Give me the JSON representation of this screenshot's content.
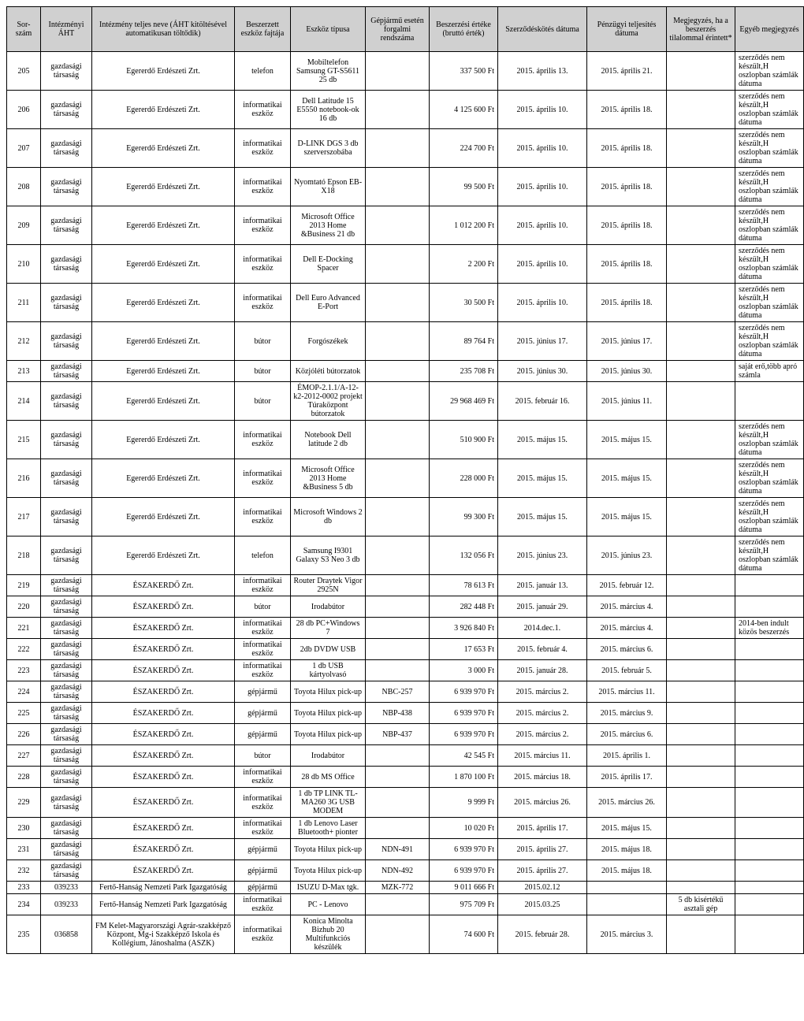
{
  "table": {
    "header_bg": "#d0d0d0",
    "columns": [
      {
        "key": "c0",
        "label": "Sor-szám",
        "width": 36,
        "align": "center"
      },
      {
        "key": "c1",
        "label": "Intézményi ÁHT",
        "width": 58,
        "align": "center"
      },
      {
        "key": "c2",
        "label": "Intézmény teljes neve (ÁHT kitöltésével automatikusan töltődik)",
        "width": 174,
        "align": "center"
      },
      {
        "key": "c3",
        "label": "Beszerzett eszköz fajtája",
        "width": 64,
        "align": "center"
      },
      {
        "key": "c4",
        "label": "Eszköz típusa",
        "width": 88,
        "align": "center"
      },
      {
        "key": "c5",
        "label": "Gépjármű esetén forgalmi rendszáma",
        "width": 74,
        "align": "center"
      },
      {
        "key": "c6",
        "label": "Beszerzési értéke (bruttó érték)",
        "width": 80,
        "align": "right"
      },
      {
        "key": "c7",
        "label": "Szerződéskötés dátuma",
        "width": 106,
        "align": "center"
      },
      {
        "key": "c8",
        "label": "Pénzügyi teljesítés dátuma",
        "width": 94,
        "align": "center"
      },
      {
        "key": "c9",
        "label": "Megjegyzés, ha a beszerzés tilalommal érintett*",
        "width": 80,
        "align": "center"
      },
      {
        "key": "c10",
        "label": "Egyéb megjegyzés",
        "width": 80,
        "align": "left"
      }
    ],
    "rows": [
      [
        "205",
        "gazdasági társaság",
        "Egererdő Erdészeti Zrt.",
        "telefon",
        "Mobiltelefon Samsung GT-S5611 25 db",
        "",
        "337 500 Ft",
        "2015. április 13.",
        "2015. április 21.",
        "",
        "szerződés nem készült,H oszlopban számlák dátuma"
      ],
      [
        "206",
        "gazdasági társaság",
        "Egererdő Erdészeti Zrt.",
        "informatikai eszköz",
        "Dell Latitude 15 E5550 notebook-ok    16 db",
        "",
        "4 125 600 Ft",
        "2015. április 10.",
        "2015. április 18.",
        "",
        "szerződés nem készült,H oszlopban számlák dátuma"
      ],
      [
        "207",
        "gazdasági társaság",
        "Egererdő Erdészeti Zrt.",
        "informatikai eszköz",
        "D-LINK DGS 3 db szerverszobába",
        "",
        "224 700 Ft",
        "2015. április 10.",
        "2015. április 18.",
        "",
        "szerződés nem készült,H oszlopban számlák dátuma"
      ],
      [
        "208",
        "gazdasági társaság",
        "Egererdő Erdészeti Zrt.",
        "informatikai eszköz",
        "Nyomtató Epson EB-X18",
        "",
        "99 500 Ft",
        "2015. április 10.",
        "2015. április 18.",
        "",
        "szerződés nem készült,H oszlopban számlák dátuma"
      ],
      [
        "209",
        "gazdasági társaság",
        "Egererdő Erdészeti Zrt.",
        "informatikai eszköz",
        "Microsoft Office 2013 Home &Business 21 db",
        "",
        "1 012 200 Ft",
        "2015. április 10.",
        "2015. április 18.",
        "",
        "szerződés nem készült,H oszlopban számlák dátuma"
      ],
      [
        "210",
        "gazdasági társaság",
        "Egererdő Erdészeti Zrt.",
        "informatikai eszköz",
        "Dell E-Docking Spacer",
        "",
        "2 200 Ft",
        "2015. április 10.",
        "2015. április 18.",
        "",
        "szerződés nem készült,H oszlopban számlák dátuma"
      ],
      [
        "211",
        "gazdasági társaság",
        "Egererdő Erdészeti Zrt.",
        "informatikai eszköz",
        "Dell Euro Advanced E-Port",
        "",
        "30 500 Ft",
        "2015. április 10.",
        "2015. április 18.",
        "",
        "szerződés nem készült,H oszlopban számlák dátuma"
      ],
      [
        "212",
        "gazdasági társaság",
        "Egererdő Erdészeti Zrt.",
        "bútor",
        "Forgószékek",
        "",
        "89 764 Ft",
        "2015. június 17.",
        "2015. június 17.",
        "",
        "szerződés nem készült,H oszlopban számlák dátuma"
      ],
      [
        "213",
        "gazdasági társaság",
        "Egererdő Erdészeti Zrt.",
        "bútor",
        "Közjóléti bútorzatok",
        "",
        "235 708 Ft",
        "2015. június 30.",
        "2015. június 30.",
        "",
        "saját erő,több apró számla"
      ],
      [
        "214",
        "gazdasági társaság",
        "Egererdő Erdészeti Zrt.",
        "bútor",
        "ÉMOP-2.1.1/A-12-k2-2012-0002 projekt Túraközpont bútorzatok",
        "",
        "29 968 469 Ft",
        "2015. február 16.",
        "2015. június 11.",
        "",
        ""
      ],
      [
        "215",
        "gazdasági társaság",
        "Egererdő Erdészeti Zrt.",
        "informatikai eszköz",
        "Notebook Dell latitude 2 db",
        "",
        "510 900 Ft",
        "2015. május 15.",
        "2015. május 15.",
        "",
        "szerződés nem készült,H oszlopban számlák dátuma"
      ],
      [
        "216",
        "gazdasági társaság",
        "Egererdő Erdészeti Zrt.",
        "informatikai eszköz",
        "Microsoft Office 2013 Home &Business 5 db",
        "",
        "228 000 Ft",
        "2015. május 15.",
        "2015. május 15.",
        "",
        "szerződés nem készült,H oszlopban számlák dátuma"
      ],
      [
        "217",
        "gazdasági társaság",
        "Egererdő Erdészeti Zrt.",
        "informatikai eszköz",
        "Microsoft Windows 2 db",
        "",
        "99 300 Ft",
        "2015. május 15.",
        "2015. május 15.",
        "",
        "szerződés nem készült,H oszlopban számlák dátuma"
      ],
      [
        "218",
        "gazdasági társaság",
        "Egererdő Erdészeti Zrt.",
        "telefon",
        "Samsung I9301 Galaxy S3 Neo 3 db",
        "",
        "132 056 Ft",
        "2015. június 23.",
        "2015. június 23.",
        "",
        "szerződés nem készült,H oszlopban számlák dátuma"
      ],
      [
        "219",
        "gazdasági társaság",
        "ÉSZAKERDŐ Zrt.",
        "informatikai eszköz",
        "Router Draytek Vigor 2925N",
        "",
        "78 613 Ft",
        "2015. január 13.",
        "2015. február 12.",
        "",
        ""
      ],
      [
        "220",
        "gazdasági társaság",
        "ÉSZAKERDŐ Zrt.",
        "bútor",
        "Irodabútor",
        "",
        "282 448 Ft",
        "2015. január 29.",
        "2015. március 4.",
        "",
        ""
      ],
      [
        "221",
        "gazdasági társaság",
        "ÉSZAKERDŐ Zrt.",
        "informatikai eszköz",
        "28 db PC+Windows 7",
        "",
        "3 926 840 Ft",
        "2014.dec.1.",
        "2015. március 4.",
        "",
        "2014-ben indult közös beszerzés"
      ],
      [
        "222",
        "gazdasági társaság",
        "ÉSZAKERDŐ Zrt.",
        "informatikai eszköz",
        "2db DVDW USB",
        "",
        "17 653 Ft",
        "2015. február 4.",
        "2015. március 6.",
        "",
        ""
      ],
      [
        "223",
        "gazdasági társaság",
        "ÉSZAKERDŐ Zrt.",
        "informatikai eszköz",
        "1 db USB kártyolvasó",
        "",
        "3 000 Ft",
        "2015. január 28.",
        "2015. február 5.",
        "",
        ""
      ],
      [
        "224",
        "gazdasági társaság",
        "ÉSZAKERDŐ Zrt.",
        "gépjármű",
        "Toyota Hilux pick-up",
        "NBC-257",
        "6 939 970 Ft",
        "2015. március 2.",
        "2015. március 11.",
        "",
        ""
      ],
      [
        "225",
        "gazdasági társaság",
        "ÉSZAKERDŐ Zrt.",
        "gépjármű",
        "Toyota Hilux pick-up",
        "NBP-438",
        "6 939 970 Ft",
        "2015. március 2.",
        "2015. március 9.",
        "",
        ""
      ],
      [
        "226",
        "gazdasági társaság",
        "ÉSZAKERDŐ Zrt.",
        "gépjármű",
        "Toyota Hilux pick-up",
        "NBP-437",
        "6 939 970 Ft",
        "2015. március 2.",
        "2015. március 6.",
        "",
        ""
      ],
      [
        "227",
        "gazdasági társaság",
        "ÉSZAKERDŐ Zrt.",
        "bútor",
        "Irodabútor",
        "",
        "42 545 Ft",
        "2015. március 11.",
        "2015. április 1.",
        "",
        ""
      ],
      [
        "228",
        "gazdasági társaság",
        "ÉSZAKERDŐ Zrt.",
        "informatikai eszköz",
        "28 db MS Office",
        "",
        "1 870 100 Ft",
        "2015. március 18.",
        "2015. április 17.",
        "",
        ""
      ],
      [
        "229",
        "gazdasági társaság",
        "ÉSZAKERDŐ Zrt.",
        "informatikai eszköz",
        "1 db TP LINK TL-MA260 3G USB MODEM",
        "",
        "9 999 Ft",
        "2015. március 26.",
        "2015. március 26.",
        "",
        ""
      ],
      [
        "230",
        "gazdasági társaság",
        "ÉSZAKERDŐ Zrt.",
        "informatikai eszköz",
        "1 db Lenovo Laser Bluetooth+ pionter",
        "",
        "10 020 Ft",
        "2015. április 17.",
        "2015. május 15.",
        "",
        ""
      ],
      [
        "231",
        "gazdasági társaság",
        "ÉSZAKERDŐ Zrt.",
        "gépjármű",
        "Toyota Hilux pick-up",
        "NDN-491",
        "6 939 970 Ft",
        "2015. április 27.",
        "2015. május 18.",
        "",
        ""
      ],
      [
        "232",
        "gazdasági társaság",
        "ÉSZAKERDŐ Zrt.",
        "gépjármű",
        "Toyota Hilux pick-up",
        "NDN-492",
        "6 939 970 Ft",
        "2015. április 27.",
        "2015. május 18.",
        "",
        ""
      ],
      [
        "233",
        "039233",
        "Fertő-Hanság Nemzeti Park Igazgatóság",
        "gépjármű",
        "ISUZU D-Max tgk.",
        "MZK-772",
        "9 011 666 Ft",
        "2015.02.12",
        "",
        "",
        ""
      ],
      [
        "234",
        "039233",
        "Fertő-Hanság Nemzeti Park Igazgatóság",
        "informatikai eszköz",
        "PC - Lenovo",
        "",
        "975 709 Ft",
        "2015.03.25",
        "",
        "5 db kisértékű asztali gép",
        ""
      ],
      [
        "235",
        "036858",
        "FM Kelet-Magyarországi Agrár-szakképző Központ, Mg-i Szakképző Iskola és Kollégium, Jánoshalma (ASZK)",
        "informatikai eszköz",
        "Konica Minolta Bizhub 20 Multifunkciós készülék",
        "",
        "74 600 Ft",
        "2015. február 28.",
        "2015. március 3.",
        "",
        ""
      ]
    ]
  }
}
